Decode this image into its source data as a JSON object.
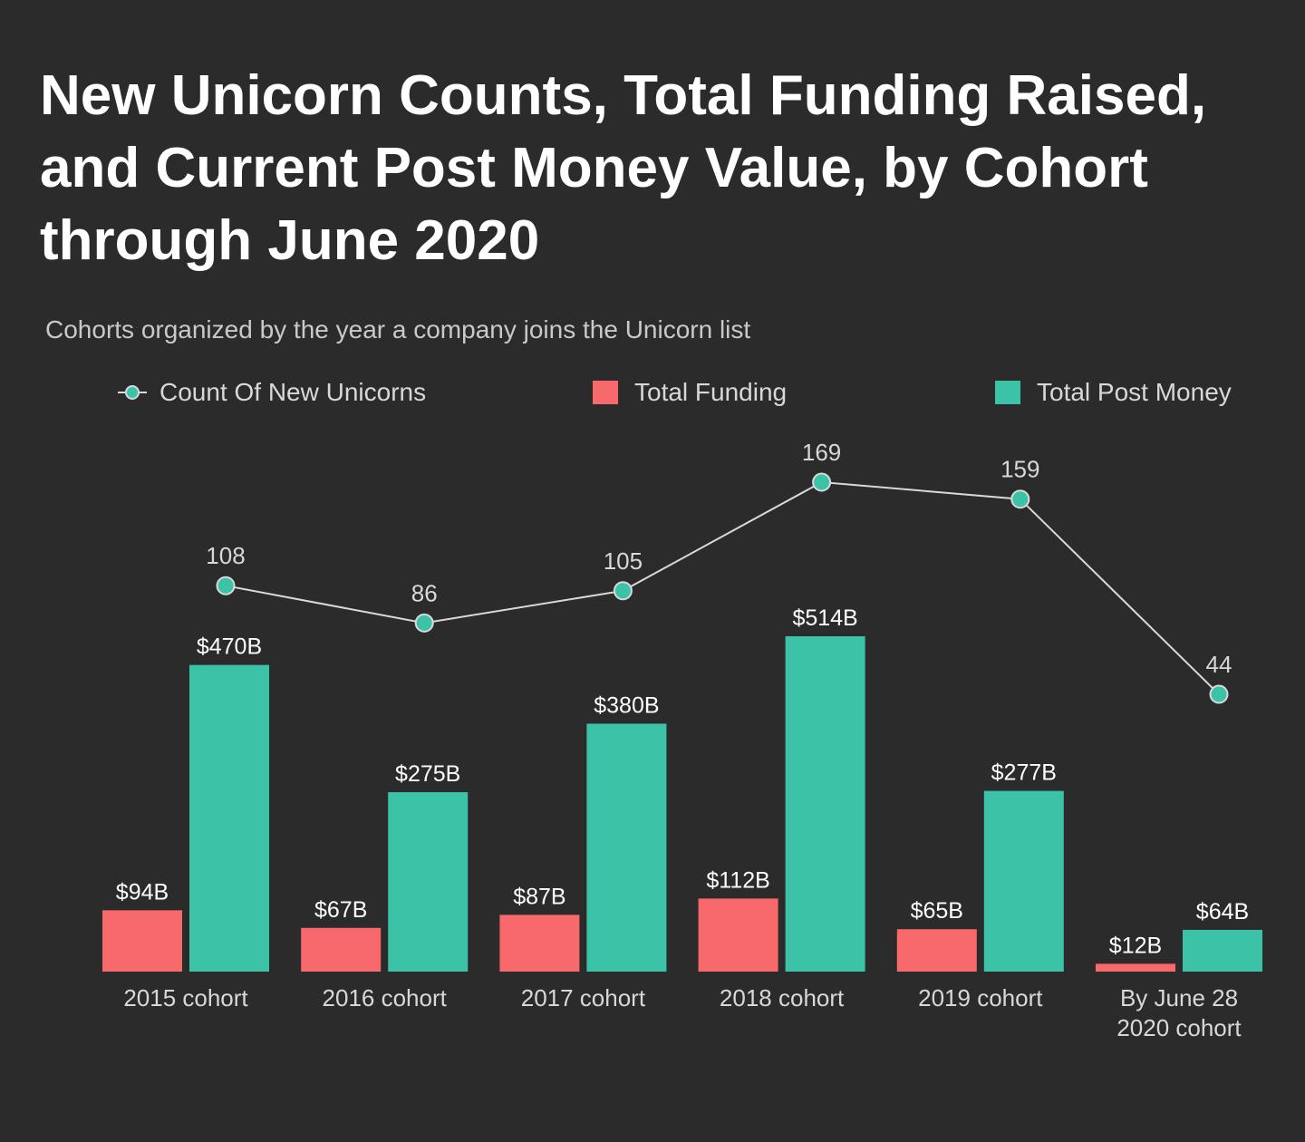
{
  "header": {
    "title": "New Unicorn Counts, Total Funding Raised, and Current Post Money Value, by Cohort through June 2020",
    "subtitle": "Cohorts organized by the year a company joins the Unicorn list"
  },
  "legend": {
    "count_label": "Count Of New Unicorns",
    "funding_label": "Total Funding",
    "post_money_label": "Total Post Money"
  },
  "colors": {
    "background": "#2b2b2b",
    "funding": "#f7696a",
    "post_money": "#3cc2a6",
    "line": "#d9d9d9",
    "text": "#ffffff",
    "muted_text": "#d8d8d8"
  },
  "chart_data": {
    "type": "bar",
    "title": "New Unicorn Counts, Total Funding Raised, and Current Post Money Value, by Cohort through June 2020",
    "subtitle": "Cohorts organized by the year a company joins the Unicorn list",
    "categories": [
      [
        "2015 cohort"
      ],
      [
        "2016 cohort"
      ],
      [
        "2017 cohort"
      ],
      [
        "2018 cohort"
      ],
      [
        "2019 cohort"
      ],
      [
        "By June 28",
        "2020 cohort"
      ]
    ],
    "series": [
      {
        "name": "Total Funding",
        "kind": "bar",
        "unit": "$B",
        "values": [
          94,
          67,
          87,
          112,
          65,
          12
        ],
        "labels": [
          "$94B",
          "$67B",
          "$87B",
          "$112B",
          "$65B",
          "$12B"
        ]
      },
      {
        "name": "Total Post Money",
        "kind": "bar",
        "unit": "$B",
        "values": [
          470,
          275,
          380,
          514,
          277,
          64
        ],
        "labels": [
          "$470B",
          "$275B",
          "$380B",
          "$514B",
          "$277B",
          "$64B"
        ]
      },
      {
        "name": "Count Of New Unicorns",
        "kind": "line",
        "values": [
          108,
          86,
          105,
          169,
          159,
          44
        ],
        "labels": [
          "108",
          "86",
          "105",
          "169",
          "159",
          "44"
        ]
      }
    ],
    "bar_axis_range": [
      0,
      520
    ],
    "line_axis_range": [
      0,
      200
    ],
    "grid": false,
    "legend_position": "top"
  }
}
